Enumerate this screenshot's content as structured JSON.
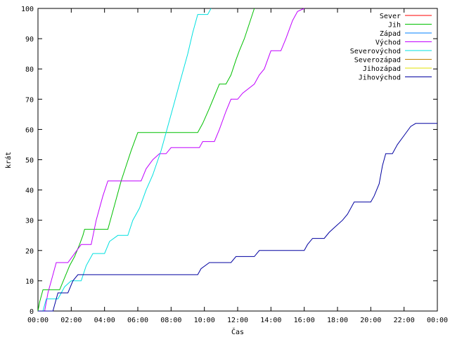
{
  "chart_data": {
    "type": "line",
    "title": "",
    "xlabel": "Čas",
    "ylabel": "krát",
    "xlim": [
      0,
      24
    ],
    "ylim": [
      0,
      100
    ],
    "x_ticks": [
      0,
      2,
      4,
      6,
      8,
      10,
      12,
      14,
      16,
      18,
      20,
      22,
      24
    ],
    "x_tick_labels": [
      "00:00",
      "02:00",
      "04:00",
      "06:00",
      "08:00",
      "10:00",
      "12:00",
      "14:00",
      "16:00",
      "18:00",
      "20:00",
      "22:00",
      "00:00"
    ],
    "y_ticks": [
      0,
      10,
      20,
      30,
      40,
      50,
      60,
      70,
      80,
      90,
      100
    ],
    "grid": false,
    "legend_position": "top-right",
    "series": [
      {
        "name": "Sever",
        "color": "#ff0000",
        "points": []
      },
      {
        "name": "Jih",
        "color": "#00c000",
        "points": [
          [
            0.0,
            0
          ],
          [
            0.1,
            3
          ],
          [
            0.3,
            7
          ],
          [
            1.3,
            7
          ],
          [
            1.6,
            11
          ],
          [
            1.9,
            15
          ],
          [
            2.2,
            18
          ],
          [
            2.5,
            22
          ],
          [
            2.7,
            25
          ],
          [
            2.8,
            27
          ],
          [
            4.2,
            27
          ],
          [
            4.6,
            35
          ],
          [
            5.0,
            43
          ],
          [
            5.3,
            48
          ],
          [
            5.6,
            53
          ],
          [
            6.0,
            59
          ],
          [
            9.6,
            59
          ],
          [
            9.9,
            62
          ],
          [
            10.3,
            67
          ],
          [
            10.6,
            71
          ],
          [
            10.9,
            75
          ],
          [
            11.3,
            75
          ],
          [
            11.6,
            78
          ],
          [
            11.9,
            83
          ],
          [
            12.1,
            86
          ],
          [
            12.4,
            90
          ],
          [
            12.7,
            95
          ],
          [
            13.0,
            100
          ]
        ]
      },
      {
        "name": "Západ",
        "color": "#0080ff",
        "points": []
      },
      {
        "name": "Východ",
        "color": "#c000ff",
        "points": [
          [
            0.0,
            0
          ],
          [
            0.4,
            0
          ],
          [
            0.6,
            6
          ],
          [
            0.9,
            12
          ],
          [
            1.1,
            16
          ],
          [
            1.8,
            16
          ],
          [
            2.2,
            19
          ],
          [
            2.6,
            22
          ],
          [
            3.2,
            22
          ],
          [
            3.5,
            30
          ],
          [
            3.9,
            38
          ],
          [
            4.2,
            43
          ],
          [
            6.2,
            43
          ],
          [
            6.5,
            47
          ],
          [
            6.9,
            50
          ],
          [
            7.3,
            52
          ],
          [
            7.7,
            52
          ],
          [
            8.0,
            54
          ],
          [
            9.7,
            54
          ],
          [
            9.9,
            56
          ],
          [
            10.6,
            56
          ],
          [
            10.9,
            60
          ],
          [
            11.3,
            66
          ],
          [
            11.6,
            70
          ],
          [
            12.0,
            70
          ],
          [
            12.3,
            72
          ],
          [
            13.0,
            75
          ],
          [
            13.3,
            78
          ],
          [
            13.6,
            80
          ],
          [
            14.0,
            86
          ],
          [
            14.6,
            86
          ],
          [
            14.9,
            90
          ],
          [
            15.3,
            96
          ],
          [
            15.6,
            99
          ],
          [
            16.0,
            100
          ]
        ]
      },
      {
        "name": "Severovýchod",
        "color": "#00e0e0",
        "points": [
          [
            0.0,
            0
          ],
          [
            0.3,
            0
          ],
          [
            0.5,
            4
          ],
          [
            1.2,
            4
          ],
          [
            1.6,
            8
          ],
          [
            2.0,
            10
          ],
          [
            2.6,
            10
          ],
          [
            2.9,
            15
          ],
          [
            3.3,
            19
          ],
          [
            4.0,
            19
          ],
          [
            4.3,
            23
          ],
          [
            4.8,
            25
          ],
          [
            5.4,
            25
          ],
          [
            5.7,
            30
          ],
          [
            6.1,
            34
          ],
          [
            6.5,
            40
          ],
          [
            6.9,
            45
          ],
          [
            7.4,
            53
          ],
          [
            7.8,
            61
          ],
          [
            8.2,
            69
          ],
          [
            8.6,
            77
          ],
          [
            9.0,
            85
          ],
          [
            9.3,
            92
          ],
          [
            9.6,
            98
          ],
          [
            10.2,
            98
          ],
          [
            10.4,
            100
          ]
        ]
      },
      {
        "name": "Severozápad",
        "color": "#c08000",
        "points": []
      },
      {
        "name": "Jihozápad",
        "color": "#e0e000",
        "points": []
      },
      {
        "name": "Jihovýchod",
        "color": "#0000a0",
        "points": [
          [
            0.0,
            0
          ],
          [
            0.9,
            0
          ],
          [
            1.2,
            6
          ],
          [
            1.8,
            6
          ],
          [
            2.1,
            10
          ],
          [
            2.4,
            12
          ],
          [
            9.6,
            12
          ],
          [
            9.8,
            14
          ],
          [
            10.3,
            16
          ],
          [
            11.6,
            16
          ],
          [
            11.9,
            18
          ],
          [
            13.0,
            18
          ],
          [
            13.3,
            20
          ],
          [
            16.0,
            20
          ],
          [
            16.2,
            22
          ],
          [
            16.5,
            24
          ],
          [
            17.2,
            24
          ],
          [
            17.5,
            26
          ],
          [
            17.9,
            28
          ],
          [
            18.3,
            30
          ],
          [
            18.6,
            32
          ],
          [
            19.0,
            36
          ],
          [
            20.0,
            36
          ],
          [
            20.2,
            38
          ],
          [
            20.5,
            42
          ],
          [
            20.7,
            48
          ],
          [
            20.9,
            52
          ],
          [
            21.3,
            52
          ],
          [
            21.6,
            55
          ],
          [
            22.0,
            58
          ],
          [
            22.4,
            61
          ],
          [
            22.7,
            62
          ],
          [
            24.0,
            62
          ]
        ]
      }
    ]
  }
}
